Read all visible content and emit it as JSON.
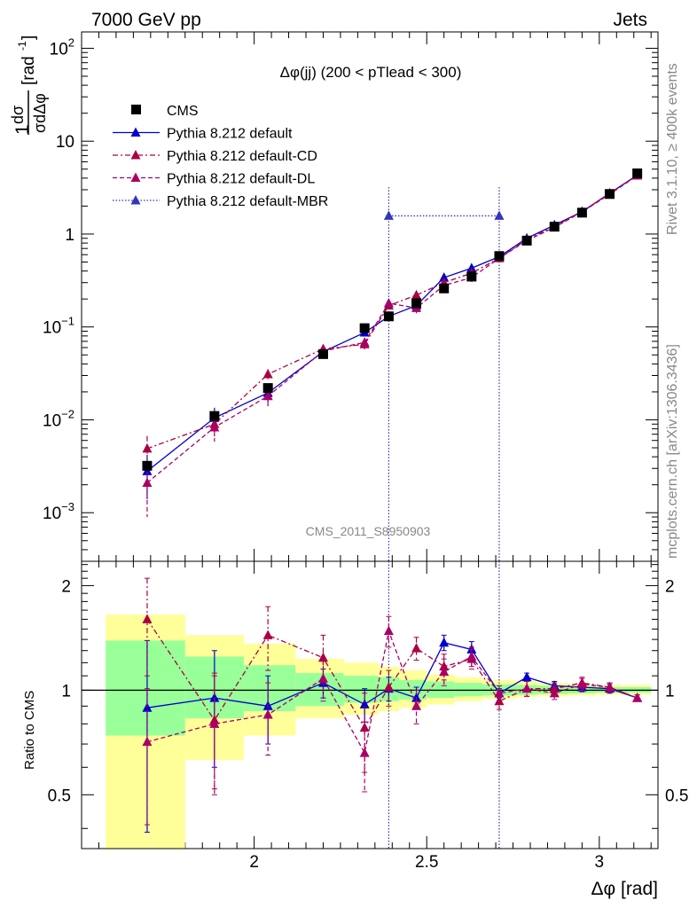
{
  "header": {
    "energy_label": "7000 GeV pp",
    "category_label": "Jets"
  },
  "side_labels": {
    "rivet": "Rivet 3.1.10, ≥ 400k events",
    "source": "mcplots.cern.ch [arXiv:1306.3436]"
  },
  "chart_data": [
    {
      "panel": "main",
      "type": "scatter",
      "title": "Δφ(jj) (200 < pTlead <  300)",
      "analysis_label": "CMS_2011_S8950903",
      "xlabel": "Δφ [rad]",
      "ylabel": "1/σ dσ/dΔφ [rad⁻¹]",
      "ylabel_parts": {
        "prefix": "1",
        "frac_top": "dσ",
        "frac_bot": "σdΔφ",
        "unit": "[rad",
        "unit_exp": "-1",
        "unit_close": "]"
      },
      "yscale": "log",
      "xlim": [
        1.5,
        3.17
      ],
      "ylim": [
        0.0003,
        150
      ],
      "x_ticks": [
        "2",
        "2.5",
        "3"
      ],
      "y_ticks": [
        {
          "value": 0.001,
          "base": "10",
          "exp": "−3"
        },
        {
          "value": 0.01,
          "base": "10",
          "exp": "−2"
        },
        {
          "value": 0.1,
          "base": "10",
          "exp": "−1"
        },
        {
          "value": 1,
          "base": "1",
          "exp": ""
        },
        {
          "value": 10,
          "base": "10",
          "exp": ""
        },
        {
          "value": 100,
          "base": "10",
          "exp": "2"
        }
      ],
      "legend_position": "top-left",
      "series": [
        {
          "name": "CMS",
          "style": "data",
          "color": "#000000",
          "x": [
            1.69,
            1.885,
            2.04,
            2.2,
            2.32,
            2.39,
            2.47,
            2.55,
            2.63,
            2.71,
            2.79,
            2.87,
            2.95,
            3.03,
            3.11
          ],
          "y": [
            0.0032,
            0.011,
            0.022,
            0.051,
            0.097,
            0.13,
            0.18,
            0.26,
            0.35,
            0.58,
            0.85,
            1.2,
            1.7,
            2.7,
            4.5
          ]
        },
        {
          "name": "Pythia 8.212 default",
          "style": "solid",
          "color": "#0000cc",
          "x": [
            1.69,
            1.885,
            2.04,
            2.2,
            2.32,
            2.39,
            2.47,
            2.55,
            2.63,
            2.71,
            2.79,
            2.87,
            2.95,
            3.03,
            3.11
          ],
          "y": [
            0.0028,
            0.0105,
            0.0195,
            0.054,
            0.087,
            0.13,
            0.17,
            0.34,
            0.43,
            0.57,
            0.9,
            1.25,
            1.74,
            2.75,
            4.3
          ],
          "err": [
            0.0014,
            0.003,
            0.004,
            0.005,
            0.008,
            0.01,
            0.015,
            0.02,
            0.025,
            0.03,
            0.04,
            0.05,
            0.06,
            0.08,
            0.1
          ]
        },
        {
          "name": "Pythia 8.212 default-CD",
          "style": "dashdot",
          "color": "#aa0044",
          "x": [
            1.69,
            1.885,
            2.04,
            2.2,
            2.32,
            2.39,
            2.47,
            2.55,
            2.63,
            2.71,
            2.79,
            2.87,
            2.95,
            3.03,
            3.11
          ],
          "y": [
            0.0049,
            0.009,
            0.031,
            0.058,
            0.065,
            0.17,
            0.22,
            0.3,
            0.38,
            0.55,
            0.87,
            1.21,
            1.75,
            2.73,
            4.3
          ],
          "err": [
            0.0018,
            0.0025,
            0.004,
            0.006,
            0.008,
            0.015,
            0.02,
            0.03,
            0.035,
            0.03,
            0.04,
            0.05,
            0.06,
            0.08,
            0.1
          ]
        },
        {
          "name": "Pythia 8.212 default-DL",
          "style": "dashed",
          "color": "#aa0066",
          "x": [
            1.69,
            1.885,
            2.04,
            2.2,
            2.32,
            2.39,
            2.47,
            2.55,
            2.63,
            2.71,
            2.79,
            2.87,
            2.95,
            3.03,
            3.11
          ],
          "y": [
            0.0021,
            0.0083,
            0.018,
            0.055,
            0.068,
            0.18,
            0.16,
            0.28,
            0.34,
            0.55,
            0.85,
            1.18,
            1.73,
            2.68,
            4.26
          ],
          "err": [
            0.0012,
            0.0025,
            0.004,
            0.006,
            0.008,
            0.015,
            0.02,
            0.03,
            0.035,
            0.03,
            0.04,
            0.05,
            0.06,
            0.08,
            0.1
          ]
        },
        {
          "name": "Pythia 8.212 default-MBR",
          "style": "dotted",
          "color": "#3333bb",
          "x": [
            2.39,
            2.71
          ],
          "y": [
            1.57,
            1.57
          ],
          "err_to_bottom": true
        }
      ]
    },
    {
      "panel": "ratio",
      "type": "line",
      "ylabel": "Ratio to CMS",
      "ylim": [
        0.35,
        2.35
      ],
      "y_ticks": [
        "0.5",
        "1",
        "2"
      ],
      "bands": {
        "x_edges": [
          1.57,
          1.8,
          1.97,
          2.12,
          2.26,
          2.36,
          2.42,
          2.5,
          2.58,
          2.66,
          2.76,
          2.82,
          2.91,
          2.99,
          3.07,
          3.15
        ],
        "green_lo": [
          0.74,
          0.83,
          0.87,
          0.9,
          0.92,
          0.93,
          0.94,
          0.95,
          0.96,
          0.965,
          0.97,
          0.975,
          0.98,
          0.985,
          0.985
        ],
        "green_hi": [
          1.39,
          1.25,
          1.18,
          1.12,
          1.1,
          1.09,
          1.07,
          1.06,
          1.05,
          1.04,
          1.035,
          1.03,
          1.025,
          1.02,
          1.02
        ],
        "yellow_lo": [
          0.2,
          0.63,
          0.74,
          0.83,
          0.85,
          0.87,
          0.89,
          0.91,
          0.93,
          0.945,
          0.955,
          0.96,
          0.965,
          0.97,
          0.97
        ],
        "yellow_hi": [
          1.65,
          1.44,
          1.36,
          1.23,
          1.2,
          1.17,
          1.14,
          1.11,
          1.09,
          1.07,
          1.06,
          1.05,
          1.04,
          1.035,
          1.035
        ]
      },
      "series": [
        {
          "name": "Pythia 8.212 default",
          "style": "solid",
          "color": "#0000cc",
          "x": [
            1.69,
            1.885,
            2.04,
            2.2,
            2.32,
            2.39,
            2.47,
            2.55,
            2.63,
            2.71,
            2.79,
            2.87,
            2.95,
            3.03,
            3.11
          ],
          "y": [
            0.89,
            0.95,
            0.9,
            1.05,
            0.91,
            1.01,
            0.95,
            1.37,
            1.31,
            0.98,
            1.09,
            1.03,
            1.02,
            1.01,
            0.95
          ],
          "err": [
            0.5,
            0.35,
            0.2,
            0.1,
            0.1,
            0.08,
            0.07,
            0.07,
            0.07,
            0.03,
            0.03,
            0.03,
            0.03,
            0.03,
            0.02
          ]
        },
        {
          "name": "Pythia 8.212 default-CD",
          "style": "dashdot",
          "color": "#aa0044",
          "x": [
            1.69,
            1.885,
            2.04,
            2.2,
            2.32,
            2.39,
            2.47,
            2.55,
            2.63,
            2.71,
            2.79,
            2.87,
            2.95,
            3.03,
            3.11
          ],
          "y": [
            1.6,
            0.82,
            1.44,
            1.24,
            0.78,
            1.02,
            1.32,
            1.17,
            1.23,
            0.93,
            1.01,
            1.01,
            1.05,
            1.02,
            0.95
          ],
          "err": [
            0.5,
            0.3,
            0.3,
            0.2,
            0.2,
            0.12,
            0.1,
            0.1,
            0.08,
            0.05,
            0.05,
            0.04,
            0.04,
            0.03,
            0.02
          ]
        },
        {
          "name": "Pythia 8.212 default-DL",
          "style": "dashed",
          "color": "#aa0066",
          "x": [
            1.69,
            1.885,
            2.04,
            2.2,
            2.32,
            2.39,
            2.47,
            2.55,
            2.63,
            2.71,
            2.79,
            2.87,
            2.95,
            3.03,
            3.11
          ],
          "y": [
            0.71,
            0.8,
            0.85,
            1.08,
            0.66,
            1.48,
            0.9,
            1.13,
            1.25,
            0.98,
            1.01,
            0.98,
            1.04,
            1.02,
            0.95
          ],
          "err": [
            0.3,
            0.3,
            0.2,
            0.15,
            0.15,
            0.15,
            0.1,
            0.1,
            0.08,
            0.05,
            0.05,
            0.04,
            0.04,
            0.03,
            0.02
          ]
        }
      ]
    }
  ]
}
